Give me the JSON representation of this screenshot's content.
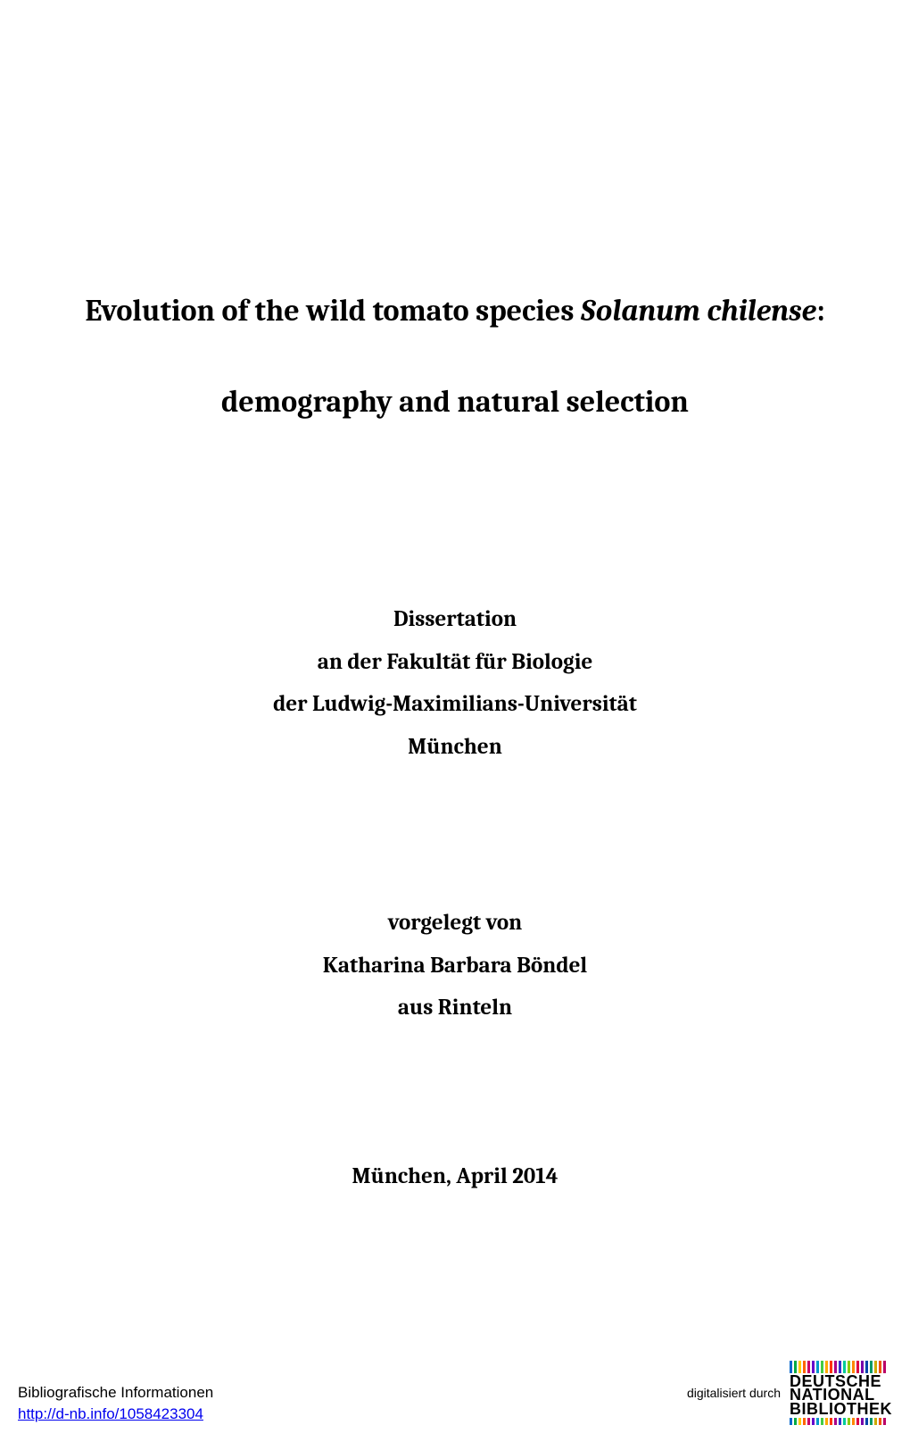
{
  "title": {
    "line1_prefix": "Evolution of the wild tomato species ",
    "line1_italic": "Solanum chilense",
    "line1_suffix": ":",
    "line2": "demography and natural selection"
  },
  "info": {
    "type": "Dissertation",
    "faculty": "an der Fakultät für Biologie",
    "university": "der Ludwig-Maximilians-Universität",
    "city": "München"
  },
  "author": {
    "presented": "vorgelegt von",
    "name": "Katharina Barbara Böndel",
    "origin": "aus Rinteln"
  },
  "date": "München, April 2014",
  "footer": {
    "biblio_label": "Bibliografische Informationen",
    "biblio_url": "http://d-nb.info/1058423304",
    "digitized_by": "digitalisiert durch",
    "logo_line1": "DEUTSCHE",
    "logo_line2": "NATIONAL",
    "logo_line3": "BIBLIOTHEK",
    "bar_colors": [
      "#0066cc",
      "#00aa44",
      "#ffcc00",
      "#ff6600",
      "#cc0066",
      "#6600cc",
      "#0099cc",
      "#44cc44",
      "#ffaa00",
      "#ff3300",
      "#aa0088",
      "#3333cc",
      "#00cc99",
      "#88cc00",
      "#ff8800",
      "#dd0044",
      "#7700aa",
      "#0044aa",
      "#009966",
      "#ccaa00",
      "#ee5500",
      "#bb0066"
    ]
  },
  "colors": {
    "text": "#000000",
    "background": "#ffffff",
    "link": "#0000ee"
  }
}
